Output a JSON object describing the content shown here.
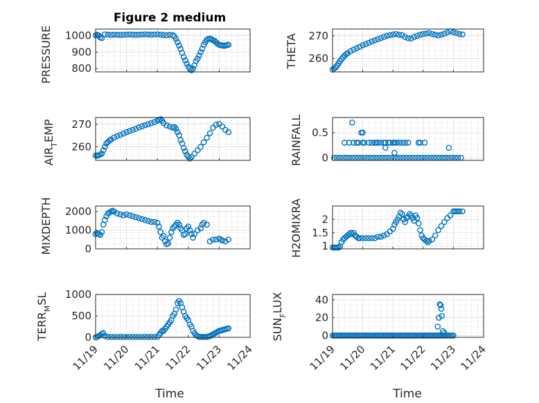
{
  "figure": {
    "title": "Figure 2 medium"
  },
  "colors": {
    "marker": "#0072BD",
    "axis": "#262626",
    "grid": "#B5B5B5"
  },
  "chart_data": [
    {
      "type": "scatter",
      "id": "pressure",
      "ylabel": "PRESSURE",
      "ylim": [
        780,
        1040
      ],
      "yticks": [
        800,
        900,
        1000
      ],
      "ytick_labels": [
        "800",
        "900",
        "1000"
      ],
      "xlim": [
        0,
        5
      ],
      "xticks": [
        0,
        1,
        2,
        3,
        4,
        5
      ],
      "xtick_labels": [
        "11/19",
        "11/20",
        "11/21",
        "11/22",
        "11/23",
        "11/24"
      ],
      "show_xticklabels": false,
      "x_days": [
        0,
        0.05,
        0.1,
        0.15,
        0.2,
        0.3,
        0.4,
        0.5,
        0.6,
        0.7,
        0.8,
        0.9,
        1.0,
        1.1,
        1.2,
        1.3,
        1.4,
        1.5,
        1.6,
        1.7,
        1.8,
        1.9,
        2.0,
        2.1,
        2.2,
        2.3,
        2.4,
        2.5,
        2.55,
        2.6,
        2.65,
        2.7,
        2.75,
        2.8,
        2.85,
        2.9,
        2.95,
        3.0,
        3.05,
        3.1,
        3.15,
        3.2,
        3.25,
        3.3,
        3.35,
        3.4,
        3.45,
        3.5,
        3.55,
        3.6,
        3.65,
        3.7,
        3.75,
        3.8,
        3.85,
        3.9,
        3.95,
        4.0,
        4.05,
        4.1,
        4.15,
        4.2,
        4.25,
        4.3
      ],
      "values": [
        1002,
        1005,
        1000,
        990,
        985,
        1008,
        1006,
        1004,
        1006,
        1005,
        1004,
        1005,
        1006,
        1007,
        1006,
        1005,
        1006,
        1007,
        1008,
        1007,
        1006,
        1007,
        1008,
        1006,
        1004,
        1002,
        1005,
        1003,
        995,
        980,
        960,
        940,
        920,
        895,
        870,
        850,
        830,
        812,
        800,
        790,
        800,
        820,
        845,
        860,
        880,
        900,
        920,
        945,
        960,
        975,
        980,
        982,
        978,
        972,
        968,
        960,
        950,
        945,
        942,
        940,
        938,
        940,
        942,
        945
      ]
    },
    {
      "type": "scatter",
      "id": "theta",
      "ylabel": "THETA",
      "ylim": [
        254,
        273
      ],
      "yticks": [
        260,
        270
      ],
      "ytick_labels": [
        "260",
        "270"
      ],
      "xlim": [
        0,
        5
      ],
      "xticks": [
        0,
        1,
        2,
        3,
        4,
        5
      ],
      "xtick_labels": [
        "11/19",
        "11/20",
        "11/21",
        "11/22",
        "11/23",
        "11/24"
      ],
      "show_xticklabels": false,
      "x_days": [
        0,
        0.05,
        0.1,
        0.15,
        0.2,
        0.25,
        0.3,
        0.35,
        0.4,
        0.45,
        0.5,
        0.6,
        0.7,
        0.8,
        0.9,
        1.0,
        1.1,
        1.2,
        1.3,
        1.4,
        1.5,
        1.6,
        1.7,
        1.8,
        1.9,
        2.0,
        2.1,
        2.2,
        2.3,
        2.4,
        2.5,
        2.6,
        2.7,
        2.8,
        2.9,
        3.0,
        3.1,
        3.2,
        3.3,
        3.4,
        3.5,
        3.6,
        3.7,
        3.8,
        3.9,
        4.0,
        4.1,
        4.2,
        4.3
      ],
      "values": [
        255,
        255.5,
        256,
        256.8,
        257.8,
        258.8,
        259.7,
        260.5,
        261.2,
        261.8,
        262.3,
        263.2,
        263.9,
        264.5,
        265.1,
        265.8,
        266.3,
        266.9,
        267.5,
        268,
        268.5,
        269,
        269.5,
        270,
        270.3,
        270.6,
        270.8,
        270.5,
        270.3,
        269.5,
        269,
        268.8,
        269.5,
        270,
        270.5,
        270.8,
        271,
        271.2,
        270.8,
        270.5,
        270.2,
        270.5,
        270.9,
        271.5,
        272,
        271.6,
        271.2,
        270.8,
        270.6
      ]
    },
    {
      "type": "scatter",
      "id": "air_temp",
      "ylabel": "AIR_TEMP",
      "ylim": [
        254,
        273
      ],
      "yticks": [
        260,
        270
      ],
      "ytick_labels": [
        "260",
        "270"
      ],
      "xlim": [
        0,
        5
      ],
      "xticks": [
        0,
        1,
        2,
        3,
        4,
        5
      ],
      "xtick_labels": [
        "11/19",
        "11/20",
        "11/21",
        "11/22",
        "11/23",
        "11/24"
      ],
      "show_xticklabels": false,
      "x_days": [
        0,
        0.05,
        0.1,
        0.15,
        0.2,
        0.25,
        0.3,
        0.35,
        0.4,
        0.45,
        0.5,
        0.6,
        0.7,
        0.8,
        0.9,
        1.0,
        1.1,
        1.2,
        1.3,
        1.4,
        1.5,
        1.6,
        1.7,
        1.8,
        1.9,
        2.0,
        2.05,
        2.1,
        2.15,
        2.2,
        2.3,
        2.4,
        2.5,
        2.55,
        2.6,
        2.65,
        2.7,
        2.75,
        2.8,
        2.85,
        2.9,
        2.95,
        3.0,
        3.05,
        3.1,
        3.2,
        3.3,
        3.4,
        3.5,
        3.6,
        3.7,
        3.8,
        3.9,
        4.0,
        4.1,
        4.2,
        4.3
      ],
      "values": [
        256.2,
        256,
        256.3,
        256.6,
        257,
        258.5,
        260,
        261.5,
        262.2,
        262.8,
        263.3,
        264.2,
        264.8,
        265.3,
        265.9,
        266.5,
        267,
        267.5,
        268,
        268.6,
        269.1,
        269.6,
        270,
        270.5,
        271,
        271.6,
        272,
        272.3,
        271.5,
        270.5,
        269.5,
        269,
        268.5,
        268.8,
        268,
        266.5,
        265.2,
        263,
        261.5,
        259.5,
        258,
        256.5,
        255.6,
        254.8,
        255.5,
        257,
        258.5,
        260,
        262,
        264,
        266,
        268.5,
        269.8,
        270.2,
        269,
        267.5,
        266.5
      ]
    },
    {
      "type": "scatter",
      "id": "rainfall",
      "ylabel": "RAINFALL",
      "ylim": [
        -0.05,
        0.8
      ],
      "yticks": [
        0,
        0.5
      ],
      "ytick_labels": [
        "0",
        "0.5"
      ],
      "xlim": [
        0,
        5
      ],
      "xticks": [
        0,
        1,
        2,
        3,
        4,
        5
      ],
      "xtick_labels": [
        "11/19",
        "11/20",
        "11/21",
        "11/22",
        "11/23",
        "11/24"
      ],
      "show_xticklabels": false,
      "x_days": [
        0.05,
        0.15,
        0.25,
        0.35,
        0.45,
        0.55,
        0.65,
        0.75,
        0.85,
        0.95,
        1.05,
        1.15,
        1.25,
        1.35,
        1.45,
        1.55,
        1.65,
        1.75,
        1.85,
        1.95,
        2.05,
        2.15,
        2.25,
        2.35,
        2.45,
        2.55,
        2.65,
        2.75,
        2.85,
        2.95,
        3.05,
        3.15,
        3.25,
        3.35,
        3.45,
        3.55,
        3.65,
        3.75,
        3.85,
        3.95,
        4.05,
        4.15,
        4.25,
        0.4,
        0.55,
        0.7,
        0.8,
        0.85,
        1.0,
        1.05,
        1.2,
        1.3,
        1.4,
        1.45,
        1.5,
        1.6,
        1.7,
        1.75,
        1.85,
        1.9,
        2.0,
        2.05,
        2.1,
        2.2,
        2.3,
        2.4,
        2.5,
        2.85,
        2.9,
        3.05,
        3.85,
        0.65,
        0.95,
        1.0,
        1.75,
        2.05
      ],
      "values": [
        0,
        0,
        0,
        0,
        0,
        0,
        0,
        0,
        0,
        0,
        0,
        0,
        0,
        0,
        0,
        0,
        0,
        0,
        0,
        0,
        0,
        0,
        0,
        0,
        0,
        0,
        0,
        0,
        0,
        0,
        0,
        0,
        0,
        0,
        0,
        0,
        0,
        0,
        0,
        0,
        0,
        0,
        0,
        0.3,
        0.3,
        0.3,
        0.3,
        0.3,
        0.3,
        0.3,
        0.3,
        0.3,
        0.3,
        0.3,
        0.3,
        0.3,
        0.3,
        0.3,
        0.3,
        0.3,
        0.3,
        0.3,
        0.3,
        0.3,
        0.3,
        0.3,
        0.3,
        0.3,
        0.3,
        0.3,
        0.2,
        0.7,
        0.5,
        0.5,
        0.2,
        0.1
      ]
    },
    {
      "type": "scatter",
      "id": "mixdepth",
      "ylabel": "MIXDEPTH",
      "ylim": [
        0,
        2300
      ],
      "yticks": [
        0,
        1000,
        2000
      ],
      "ytick_labels": [
        "0",
        "1000",
        "2000"
      ],
      "xlim": [
        0,
        5
      ],
      "xticks": [
        0,
        1,
        2,
        3,
        4,
        5
      ],
      "xtick_labels": [
        "11/19",
        "11/20",
        "11/21",
        "11/22",
        "11/23",
        "11/24"
      ],
      "show_xticklabels": false,
      "x_days": [
        0,
        0.05,
        0.1,
        0.15,
        0.2,
        0.25,
        0.3,
        0.35,
        0.4,
        0.45,
        0.5,
        0.55,
        0.6,
        0.7,
        0.8,
        0.9,
        1.0,
        1.1,
        1.2,
        1.3,
        1.4,
        1.5,
        1.6,
        1.7,
        1.8,
        1.9,
        2.0,
        2.05,
        2.1,
        2.15,
        2.2,
        2.25,
        2.3,
        2.35,
        2.4,
        2.45,
        2.5,
        2.55,
        2.6,
        2.65,
        2.7,
        2.75,
        2.8,
        2.85,
        2.9,
        2.95,
        3.0,
        3.05,
        3.1,
        3.15,
        3.2,
        3.3,
        3.4,
        3.45,
        3.5,
        3.6,
        3.7,
        3.8,
        3.9,
        4.0,
        4.05,
        4.1,
        4.2,
        4.3
      ],
      "values": [
        800,
        850,
        800,
        750,
        900,
        1300,
        1550,
        1750,
        1900,
        1950,
        2000,
        2050,
        2000,
        1900,
        1850,
        1800,
        1850,
        1800,
        1750,
        1700,
        1650,
        1600,
        1550,
        1500,
        1450,
        1450,
        1400,
        1200,
        900,
        600,
        700,
        400,
        250,
        300,
        600,
        900,
        1100,
        1200,
        1300,
        1400,
        1300,
        1100,
        1000,
        750,
        800,
        1100,
        1200,
        1000,
        800,
        600,
        800,
        1000,
        1100,
        1300,
        1400,
        1300,
        400,
        500,
        500,
        550,
        500,
        450,
        400,
        500
      ]
    },
    {
      "type": "scatter",
      "id": "h2omixra",
      "ylabel": "H2OMIXRA",
      "ylim": [
        0.9,
        2.5
      ],
      "yticks": [
        1,
        1.5,
        2
      ],
      "ytick_labels": [
        "1",
        "1.5",
        "2"
      ],
      "xlim": [
        0,
        5
      ],
      "xticks": [
        0,
        1,
        2,
        3,
        4,
        5
      ],
      "xtick_labels": [
        "11/19",
        "11/20",
        "11/21",
        "11/22",
        "11/23",
        "11/24"
      ],
      "show_xticklabels": false,
      "x_days": [
        0,
        0.05,
        0.1,
        0.15,
        0.2,
        0.25,
        0.3,
        0.35,
        0.4,
        0.45,
        0.5,
        0.55,
        0.6,
        0.65,
        0.7,
        0.75,
        0.8,
        0.85,
        0.9,
        1.0,
        1.1,
        1.2,
        1.3,
        1.4,
        1.5,
        1.6,
        1.7,
        1.8,
        1.9,
        2.0,
        2.05,
        2.1,
        2.15,
        2.2,
        2.25,
        2.3,
        2.35,
        2.4,
        2.45,
        2.5,
        2.55,
        2.6,
        2.65,
        2.7,
        2.75,
        2.8,
        2.85,
        2.9,
        2.95,
        3.0,
        3.05,
        3.1,
        3.15,
        3.2,
        3.3,
        3.4,
        3.5,
        3.6,
        3.7,
        3.8,
        3.9,
        4.0,
        4.05,
        4.1,
        4.15,
        4.2,
        4.3
      ],
      "values": [
        0.95,
        0.95,
        0.95,
        0.95,
        0.95,
        1.0,
        1.15,
        1.25,
        1.3,
        1.35,
        1.4,
        1.45,
        1.5,
        1.45,
        1.5,
        1.4,
        1.35,
        1.3,
        1.3,
        1.3,
        1.3,
        1.3,
        1.3,
        1.3,
        1.35,
        1.35,
        1.4,
        1.45,
        1.55,
        1.65,
        1.8,
        1.9,
        2.0,
        2.1,
        2.25,
        2.2,
        2.0,
        1.9,
        2.05,
        2.1,
        2.2,
        2.15,
        2.05,
        1.95,
        2.15,
        2.05,
        1.85,
        1.6,
        1.4,
        1.3,
        1.25,
        1.2,
        1.15,
        1.2,
        1.25,
        1.4,
        1.6,
        1.75,
        1.9,
        2.05,
        2.15,
        2.3,
        2.3,
        2.3,
        2.3,
        2.3,
        2.3
      ]
    },
    {
      "type": "scatter",
      "id": "terr_msl",
      "ylabel": "TERR_MSL",
      "ylim": [
        0,
        1000
      ],
      "yticks": [
        0,
        500,
        1000
      ],
      "ytick_labels": [
        "0",
        "500",
        "1000"
      ],
      "xlim": [
        0,
        5
      ],
      "xticks": [
        0,
        1,
        2,
        3,
        4,
        5
      ],
      "xtick_labels": [
        "11/19",
        "11/20",
        "11/21",
        "11/22",
        "11/23",
        "11/24"
      ],
      "show_xticklabels": true,
      "x_days": [
        0,
        0.05,
        0.1,
        0.15,
        0.2,
        0.25,
        0.3,
        0.4,
        0.5,
        0.6,
        0.7,
        0.8,
        0.9,
        1.0,
        1.1,
        1.2,
        1.3,
        1.4,
        1.5,
        1.6,
        1.7,
        1.8,
        1.9,
        2.0,
        2.05,
        2.1,
        2.15,
        2.2,
        2.25,
        2.3,
        2.35,
        2.4,
        2.45,
        2.5,
        2.55,
        2.6,
        2.65,
        2.7,
        2.75,
        2.8,
        2.85,
        2.9,
        2.95,
        3.0,
        3.05,
        3.1,
        3.15,
        3.2,
        3.25,
        3.3,
        3.35,
        3.4,
        3.45,
        3.5,
        3.55,
        3.6,
        3.65,
        3.7,
        3.75,
        3.8,
        3.85,
        3.9,
        3.95,
        4.0,
        4.05,
        4.1,
        4.15,
        4.2,
        4.25,
        4.3
      ],
      "values": [
        0,
        10,
        30,
        50,
        80,
        100,
        30,
        10,
        10,
        10,
        10,
        10,
        10,
        10,
        10,
        10,
        10,
        10,
        10,
        10,
        10,
        10,
        10,
        10,
        50,
        100,
        150,
        150,
        200,
        250,
        300,
        350,
        400,
        500,
        550,
        650,
        800,
        850,
        800,
        700,
        600,
        500,
        450,
        400,
        300,
        250,
        150,
        100,
        50,
        30,
        10,
        10,
        10,
        10,
        10,
        10,
        20,
        30,
        50,
        70,
        90,
        110,
        130,
        150,
        160,
        170,
        180,
        190,
        200,
        210
      ]
    },
    {
      "type": "scatter",
      "id": "sun_flux",
      "ylabel": "SUN_FLUX",
      "ylim": [
        -2,
        46
      ],
      "yticks": [
        0,
        20,
        40
      ],
      "ytick_labels": [
        "0",
        "20",
        "40"
      ],
      "xlim": [
        0,
        5
      ],
      "xticks": [
        0,
        1,
        2,
        3,
        4,
        5
      ],
      "xtick_labels": [
        "11/19",
        "11/20",
        "11/21",
        "11/22",
        "11/23",
        "11/24"
      ],
      "show_xticklabels": true,
      "x_days": [
        0,
        0.05,
        0.1,
        0.15,
        0.2,
        0.25,
        0.3,
        0.35,
        0.4,
        0.45,
        0.5,
        0.55,
        0.6,
        0.65,
        0.7,
        0.75,
        0.8,
        0.85,
        0.9,
        0.95,
        1.0,
        1.05,
        1.1,
        1.15,
        1.2,
        1.25,
        1.3,
        1.35,
        1.4,
        1.45,
        1.5,
        1.55,
        1.6,
        1.65,
        1.7,
        1.75,
        1.8,
        1.85,
        1.9,
        1.95,
        2.0,
        2.05,
        2.1,
        2.15,
        2.2,
        2.25,
        2.3,
        2.35,
        2.4,
        2.45,
        2.5,
        2.55,
        2.6,
        2.65,
        2.7,
        2.75,
        2.8,
        2.85,
        2.9,
        2.95,
        3.0,
        3.05,
        3.1,
        3.15,
        3.2,
        3.25,
        3.3,
        3.35,
        3.4,
        3.45,
        3.5,
        3.55,
        3.6,
        3.65,
        3.7,
        3.75,
        3.8,
        3.85,
        3.9,
        3.95,
        4.0,
        3.48,
        3.52,
        3.55,
        3.58,
        3.6,
        3.62,
        3.65,
        3.7
      ],
      "values": [
        0,
        0,
        0,
        0,
        0,
        0,
        0,
        0,
        0,
        0,
        0,
        0,
        0,
        0,
        0,
        0,
        0,
        0,
        0,
        0,
        0,
        0,
        0,
        0,
        0,
        0,
        0,
        0,
        0,
        0,
        0,
        0,
        0,
        0,
        0,
        0,
        0,
        0,
        0,
        0,
        0,
        0,
        0,
        0,
        0,
        0,
        0,
        0,
        0,
        0,
        0,
        0,
        0,
        0,
        0,
        0,
        0,
        0,
        0,
        0,
        0,
        0,
        0,
        0,
        0,
        0,
        0,
        0,
        0,
        0,
        0,
        0,
        0,
        0,
        0,
        0,
        0,
        0,
        0,
        0,
        0,
        10,
        20,
        35,
        34,
        30,
        22,
        5,
        3
      ]
    }
  ],
  "axes_text": {
    "pressure_ylabel": "PRESSURE",
    "theta_ylabel": "THETA",
    "air_temp_ylabel_a": "AIR",
    "air_temp_ylabel_sub": "T",
    "air_temp_ylabel_b": "EMP",
    "rainfall_ylabel": "RAINFALL",
    "mixdepth_ylabel": "MIXDEPTH",
    "h2omixra_ylabel": "H2OMIXRA",
    "terr_ylabel_a": "TERR",
    "terr_ylabel_sub": "M",
    "terr_ylabel_b": "SL",
    "sun_ylabel_a": "SUN",
    "sun_ylabel_sub": "F",
    "sun_ylabel_b": "LUX",
    "xlabel_left": "Time",
    "xlabel_right": "Time"
  }
}
